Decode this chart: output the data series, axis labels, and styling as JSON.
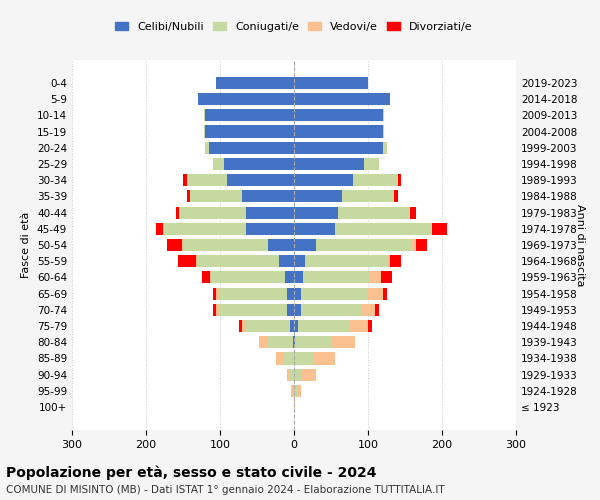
{
  "age_groups": [
    "100+",
    "95-99",
    "90-94",
    "85-89",
    "80-84",
    "75-79",
    "70-74",
    "65-69",
    "60-64",
    "55-59",
    "50-54",
    "45-49",
    "40-44",
    "35-39",
    "30-34",
    "25-29",
    "20-24",
    "15-19",
    "10-14",
    "5-9",
    "0-4"
  ],
  "birth_years": [
    "≤ 1923",
    "1924-1928",
    "1929-1933",
    "1934-1938",
    "1939-1943",
    "1944-1948",
    "1949-1953",
    "1954-1958",
    "1959-1963",
    "1964-1968",
    "1969-1973",
    "1974-1978",
    "1979-1983",
    "1984-1988",
    "1989-1993",
    "1994-1998",
    "1999-2003",
    "2004-2008",
    "2009-2013",
    "2014-2018",
    "2019-2023"
  ],
  "male": {
    "celibi": [
      0,
      0,
      0,
      0,
      2,
      5,
      10,
      10,
      12,
      20,
      35,
      65,
      65,
      70,
      90,
      95,
      115,
      120,
      120,
      130,
      105
    ],
    "coniugati": [
      0,
      2,
      5,
      15,
      35,
      60,
      90,
      90,
      100,
      110,
      115,
      110,
      90,
      70,
      55,
      15,
      5,
      2,
      2,
      0,
      0
    ],
    "vedovi": [
      0,
      2,
      5,
      10,
      10,
      5,
      5,
      5,
      2,
      2,
      2,
      2,
      0,
      0,
      0,
      0,
      0,
      0,
      0,
      0,
      0
    ],
    "divorziati": [
      0,
      0,
      0,
      0,
      0,
      5,
      5,
      5,
      10,
      25,
      20,
      10,
      5,
      5,
      5,
      0,
      0,
      0,
      0,
      0,
      0
    ]
  },
  "female": {
    "nubili": [
      0,
      0,
      0,
      0,
      2,
      5,
      10,
      10,
      12,
      15,
      30,
      55,
      60,
      65,
      80,
      95,
      120,
      120,
      120,
      130,
      100
    ],
    "coniugate": [
      0,
      5,
      10,
      25,
      50,
      70,
      80,
      90,
      90,
      110,
      130,
      130,
      95,
      70,
      60,
      20,
      5,
      2,
      2,
      0,
      0
    ],
    "vedove": [
      2,
      5,
      20,
      30,
      30,
      25,
      20,
      20,
      15,
      5,
      5,
      2,
      2,
      0,
      0,
      0,
      0,
      0,
      0,
      0,
      0
    ],
    "divorziate": [
      0,
      0,
      0,
      0,
      0,
      5,
      5,
      5,
      15,
      15,
      15,
      20,
      8,
      5,
      5,
      0,
      0,
      0,
      0,
      0,
      0
    ]
  },
  "colors": {
    "celibi": "#4472C4",
    "coniugati": "#C6D9A0",
    "vedovi": "#FAC090",
    "divorziati": "#FF0000"
  },
  "xlim": 300,
  "title": "Popolazione per età, sesso e stato civile - 2024",
  "subtitle": "COMUNE DI MISINTO (MB) - Dati ISTAT 1° gennaio 2024 - Elaborazione TUTTITALIA.IT",
  "ylabel_left": "Fasce di età",
  "ylabel_right": "Anni di nascita",
  "bg_color": "#f5f5f5",
  "plot_bg": "#ffffff"
}
